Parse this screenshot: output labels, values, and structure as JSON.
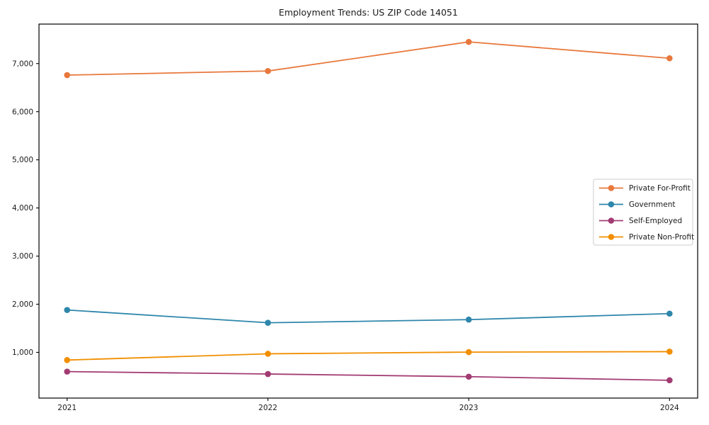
{
  "figure": {
    "title": "Employment Trends: US ZIP Code 14051"
  },
  "chart_data": {
    "type": "line",
    "title": "Employment Trends: US ZIP Code 14051",
    "xlabel": "",
    "ylabel": "",
    "x_categories": [
      "2021",
      "2022",
      "2023",
      "2024"
    ],
    "x_values": [
      2021,
      2022,
      2023,
      2024
    ],
    "series": [
      {
        "name": "Private For-Profit",
        "color": "#E8783C",
        "values": [
          6760,
          6845,
          7450,
          7110
        ]
      },
      {
        "name": "Government",
        "color": "#2E86AB",
        "values": [
          1880,
          1615,
          1680,
          1805
        ]
      },
      {
        "name": "Self-Employed",
        "color": "#A23B72",
        "values": [
          600,
          550,
          495,
          420
        ]
      },
      {
        "name": "Private Non-Profit",
        "color": "#F18F01",
        "values": [
          840,
          970,
          1005,
          1015
        ]
      }
    ],
    "xlim": [
      2020.86,
      2024.14
    ],
    "ylim": [
      50,
      7820
    ],
    "yticks": [
      1000,
      2000,
      3000,
      4000,
      5000,
      6000,
      7000
    ],
    "ytick_labels": [
      "1,000",
      "2,000",
      "3,000",
      "4,000",
      "5,000",
      "6,000",
      "7,000"
    ],
    "grid": false,
    "marker": "circle",
    "legend": {
      "position": "center-right",
      "entries": [
        "Private For-Profit",
        "Government",
        "Self-Employed",
        "Private Non-Profit"
      ]
    },
    "axis_color": "#000000",
    "text_color": "#1a1a1a",
    "legend_border_color": "#cccccc",
    "background_color": "#ffffff"
  }
}
